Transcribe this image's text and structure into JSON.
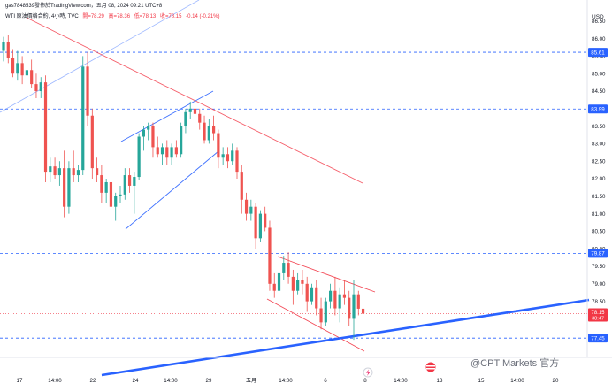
{
  "header": {
    "line1": "gas7848539發佈於TradingView.com，五月 08, 2024 09:21 UTC+8",
    "symbol": "WTI 原油價格合約, 4小時, TVC",
    "ohlc_open": "開=78.29",
    "ohlc_high": "高=78.36",
    "ohlc_low": "低=78.13",
    "ohlc_close": "收=78.15",
    "change": "-0.14 (-0.21%)"
  },
  "watermark": "@CPT Markets 官方",
  "colors": {
    "up": "#26a69a",
    "down": "#ef5350",
    "trend_blue": "#2962ff",
    "trend_red": "#f23645",
    "axis_text": "#131722",
    "grid_dash": "#2962ff",
    "price_tag_blue": "#2962ff",
    "price_tag_red": "#f23645"
  },
  "chart_data": {
    "type": "candlestick",
    "ylabel": "USD",
    "ylim": [
      77.0,
      86.9
    ],
    "y_ticks": [
      "86.50",
      "86.00",
      "85.50",
      "85.00",
      "84.50",
      "84.00",
      "83.50",
      "83.00",
      "82.50",
      "82.00",
      "81.50",
      "81.00",
      "80.50",
      "80.00",
      "79.50",
      "79.00",
      "78.50",
      "78.00",
      "77.50"
    ],
    "x_ticks": [
      "17",
      "14:00",
      "22",
      "24",
      "14:00",
      "29",
      "五月",
      "14:00",
      "6",
      "8",
      "14:00",
      "13",
      "15",
      "14:00",
      "20"
    ],
    "horizontal_levels": [
      {
        "value": 85.61,
        "label": "85.61",
        "color": "blue"
      },
      {
        "value": 83.99,
        "label": "83.99",
        "color": "blue"
      },
      {
        "value": 79.87,
        "label": "79.87",
        "color": "blue"
      },
      {
        "value": 77.45,
        "label": "77.45",
        "color": "blue"
      }
    ],
    "current_price": {
      "value": 78.15,
      "label": "78.15",
      "countdown": "38:47"
    },
    "candles": [
      {
        "o": 85.65,
        "h": 86.05,
        "l": 85.35,
        "c": 85.9
      },
      {
        "o": 85.9,
        "h": 86.1,
        "l": 85.3,
        "c": 85.45
      },
      {
        "o": 85.45,
        "h": 85.7,
        "l": 84.9,
        "c": 85.0
      },
      {
        "o": 85.0,
        "h": 85.65,
        "l": 84.8,
        "c": 85.3
      },
      {
        "o": 85.3,
        "h": 85.5,
        "l": 84.7,
        "c": 84.95
      },
      {
        "o": 84.95,
        "h": 85.3,
        "l": 84.7,
        "c": 85.1
      },
      {
        "o": 85.1,
        "h": 85.4,
        "l": 84.6,
        "c": 84.7
      },
      {
        "o": 84.7,
        "h": 85.0,
        "l": 84.3,
        "c": 84.5
      },
      {
        "o": 84.5,
        "h": 84.9,
        "l": 84.3,
        "c": 84.75
      },
      {
        "o": 84.75,
        "h": 84.95,
        "l": 81.9,
        "c": 82.2
      },
      {
        "o": 82.2,
        "h": 82.6,
        "l": 81.9,
        "c": 82.35
      },
      {
        "o": 82.35,
        "h": 82.6,
        "l": 82.0,
        "c": 82.1
      },
      {
        "o": 82.1,
        "h": 82.5,
        "l": 81.8,
        "c": 82.3
      },
      {
        "o": 82.3,
        "h": 82.8,
        "l": 80.9,
        "c": 81.2
      },
      {
        "o": 81.2,
        "h": 82.5,
        "l": 81.0,
        "c": 82.3
      },
      {
        "o": 82.3,
        "h": 82.8,
        "l": 81.9,
        "c": 82.1
      },
      {
        "o": 82.1,
        "h": 82.4,
        "l": 81.9,
        "c": 82.25
      },
      {
        "o": 82.25,
        "h": 85.5,
        "l": 82.1,
        "c": 85.2
      },
      {
        "o": 85.2,
        "h": 85.61,
        "l": 83.5,
        "c": 83.8
      },
      {
        "o": 83.8,
        "h": 84.0,
        "l": 82.0,
        "c": 82.3
      },
      {
        "o": 82.3,
        "h": 82.6,
        "l": 81.9,
        "c": 82.1
      },
      {
        "o": 82.1,
        "h": 82.4,
        "l": 81.3,
        "c": 81.6
      },
      {
        "o": 81.6,
        "h": 82.0,
        "l": 81.3,
        "c": 81.9
      },
      {
        "o": 81.9,
        "h": 82.1,
        "l": 80.9,
        "c": 81.2
      },
      {
        "o": 81.2,
        "h": 81.6,
        "l": 80.8,
        "c": 81.5
      },
      {
        "o": 81.5,
        "h": 81.8,
        "l": 81.3,
        "c": 81.55
      },
      {
        "o": 81.55,
        "h": 82.3,
        "l": 81.4,
        "c": 82.1
      },
      {
        "o": 82.1,
        "h": 82.3,
        "l": 81.6,
        "c": 81.8
      },
      {
        "o": 81.8,
        "h": 82.2,
        "l": 81.0,
        "c": 82.05
      },
      {
        "o": 82.05,
        "h": 83.3,
        "l": 81.95,
        "c": 83.2
      },
      {
        "o": 83.2,
        "h": 83.5,
        "l": 82.8,
        "c": 83.4
      },
      {
        "o": 83.4,
        "h": 83.6,
        "l": 83.1,
        "c": 83.5
      },
      {
        "o": 83.5,
        "h": 83.6,
        "l": 82.6,
        "c": 82.9
      },
      {
        "o": 82.9,
        "h": 83.2,
        "l": 82.6,
        "c": 82.7
      },
      {
        "o": 82.7,
        "h": 83.0,
        "l": 82.4,
        "c": 82.9
      },
      {
        "o": 82.9,
        "h": 83.1,
        "l": 82.4,
        "c": 82.6
      },
      {
        "o": 82.6,
        "h": 83.0,
        "l": 82.4,
        "c": 82.9
      },
      {
        "o": 82.9,
        "h": 83.1,
        "l": 82.6,
        "c": 82.7
      },
      {
        "o": 82.7,
        "h": 83.6,
        "l": 82.6,
        "c": 83.5
      },
      {
        "o": 83.5,
        "h": 84.0,
        "l": 83.3,
        "c": 83.9
      },
      {
        "o": 83.9,
        "h": 84.2,
        "l": 83.7,
        "c": 84.0
      },
      {
        "o": 84.0,
        "h": 84.4,
        "l": 83.7,
        "c": 83.85
      },
      {
        "o": 83.85,
        "h": 84.0,
        "l": 83.4,
        "c": 83.6
      },
      {
        "o": 83.6,
        "h": 83.8,
        "l": 83.0,
        "c": 83.1
      },
      {
        "o": 83.1,
        "h": 83.7,
        "l": 83.0,
        "c": 83.5
      },
      {
        "o": 83.5,
        "h": 83.8,
        "l": 83.1,
        "c": 83.3
      },
      {
        "o": 83.3,
        "h": 83.4,
        "l": 82.3,
        "c": 82.6
      },
      {
        "o": 82.6,
        "h": 82.9,
        "l": 82.4,
        "c": 82.7
      },
      {
        "o": 82.7,
        "h": 82.9,
        "l": 82.3,
        "c": 82.5
      },
      {
        "o": 82.5,
        "h": 83.0,
        "l": 82.4,
        "c": 82.8
      },
      {
        "o": 82.8,
        "h": 82.9,
        "l": 82.0,
        "c": 82.2
      },
      {
        "o": 82.2,
        "h": 82.4,
        "l": 81.0,
        "c": 81.4
      },
      {
        "o": 81.4,
        "h": 81.6,
        "l": 80.8,
        "c": 81.0
      },
      {
        "o": 81.0,
        "h": 81.4,
        "l": 80.8,
        "c": 81.2
      },
      {
        "o": 81.2,
        "h": 81.3,
        "l": 80.0,
        "c": 80.3
      },
      {
        "o": 80.3,
        "h": 81.1,
        "l": 80.2,
        "c": 81.0
      },
      {
        "o": 81.0,
        "h": 81.2,
        "l": 80.5,
        "c": 80.6
      },
      {
        "o": 80.6,
        "h": 80.8,
        "l": 78.8,
        "c": 79.0
      },
      {
        "o": 79.0,
        "h": 79.3,
        "l": 78.6,
        "c": 78.8
      },
      {
        "o": 78.8,
        "h": 79.5,
        "l": 78.7,
        "c": 79.3
      },
      {
        "o": 79.3,
        "h": 79.8,
        "l": 79.1,
        "c": 79.6
      },
      {
        "o": 79.6,
        "h": 79.9,
        "l": 79.0,
        "c": 79.2
      },
      {
        "o": 79.2,
        "h": 79.4,
        "l": 78.4,
        "c": 78.8
      },
      {
        "o": 78.8,
        "h": 79.3,
        "l": 78.7,
        "c": 79.1
      },
      {
        "o": 79.1,
        "h": 79.4,
        "l": 78.7,
        "c": 79.0
      },
      {
        "o": 79.0,
        "h": 79.2,
        "l": 78.2,
        "c": 78.5
      },
      {
        "o": 78.5,
        "h": 79.0,
        "l": 78.4,
        "c": 78.9
      },
      {
        "o": 78.9,
        "h": 79.1,
        "l": 78.1,
        "c": 78.3
      },
      {
        "o": 78.3,
        "h": 78.6,
        "l": 77.7,
        "c": 77.9
      },
      {
        "o": 77.9,
        "h": 78.6,
        "l": 77.8,
        "c": 78.5
      },
      {
        "o": 78.5,
        "h": 79.0,
        "l": 78.3,
        "c": 78.8
      },
      {
        "o": 78.8,
        "h": 79.2,
        "l": 78.1,
        "c": 78.3
      },
      {
        "o": 78.3,
        "h": 78.9,
        "l": 77.9,
        "c": 78.7
      },
      {
        "o": 78.7,
        "h": 79.1,
        "l": 78.4,
        "c": 78.6
      },
      {
        "o": 78.6,
        "h": 78.8,
        "l": 77.8,
        "c": 78.0
      },
      {
        "o": 78.0,
        "h": 79.1,
        "l": 77.4,
        "c": 78.7
      },
      {
        "o": 78.7,
        "h": 78.8,
        "l": 78.1,
        "c": 78.29
      },
      {
        "o": 78.29,
        "h": 78.36,
        "l": 78.13,
        "c": 78.15
      }
    ]
  }
}
